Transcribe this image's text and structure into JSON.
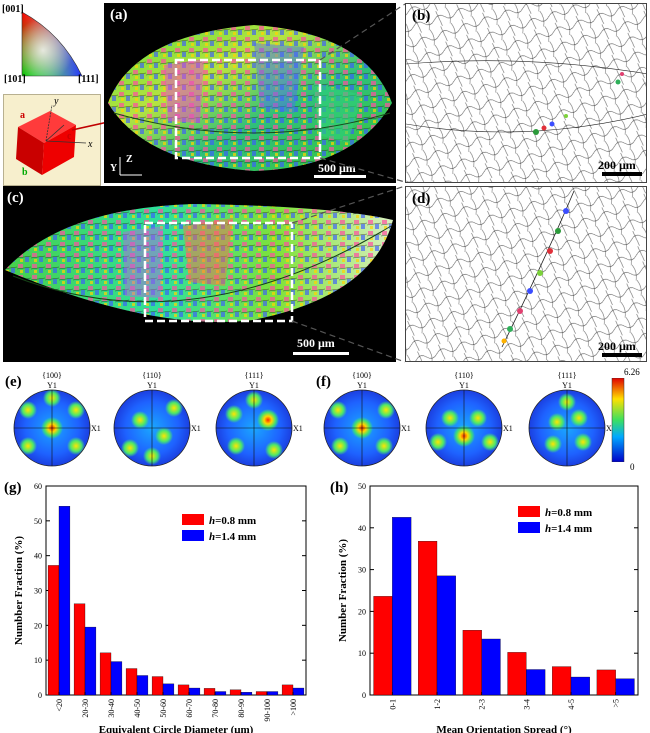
{
  "ipf_key": {
    "corner_001": "[001]",
    "corner_101": "[101]",
    "corner_111": "[111]"
  },
  "crystal": {
    "a": "a",
    "b": "b",
    "c": "c",
    "x": "x",
    "y": "y"
  },
  "map_axes": {
    "y": "Y",
    "z": "Z"
  },
  "panels": {
    "a": {
      "label": "(a)",
      "scale": "500 μm"
    },
    "b": {
      "label": "(b)",
      "scale": "200 μm"
    },
    "c": {
      "label": "(c)",
      "scale": "500 μm"
    },
    "d": {
      "label": "(d)",
      "scale": "200 μm"
    },
    "e": {
      "label": "(e)"
    },
    "f": {
      "label": "(f)"
    },
    "g": {
      "label": "(g)"
    },
    "h": {
      "label": "(h)"
    }
  },
  "pole_figures": {
    "planes": [
      "{100}",
      "{110}",
      "{111}"
    ],
    "axis_y": "Y1",
    "axis_x": "X1",
    "colorbar_max": "6.26",
    "colorbar_min": "0"
  },
  "colors": {
    "h08": "#ff0000",
    "h14": "#0000ff"
  },
  "chart_data": [
    {
      "type": "bar",
      "title": "",
      "xlabel": "Equivalent Circle Diameter (μm)",
      "ylabel": "Numbber Fraction (%)",
      "ylim": [
        0,
        60
      ],
      "yticks": [
        0,
        10,
        20,
        30,
        40,
        50,
        60
      ],
      "categories": [
        "<20",
        "20-30",
        "30-40",
        "40-50",
        "50-60",
        "60-70",
        "70-80",
        "80-90",
        "90-100",
        ">100"
      ],
      "legend_position": "top-right",
      "series": [
        {
          "name": "h=0.8 mm",
          "legend_italic": "h",
          "legend_rest": "=0.8 mm",
          "color": "#ff0000",
          "values": [
            37.2,
            26.2,
            12.1,
            7.6,
            5.3,
            2.9,
            1.9,
            1.5,
            1.0,
            2.9
          ]
        },
        {
          "name": "h=1.4 mm",
          "legend_italic": "h",
          "legend_rest": "=1.4 mm",
          "color": "#0000ff",
          "values": [
            54.2,
            19.5,
            9.6,
            5.6,
            3.2,
            2.0,
            1.0,
            0.8,
            1.0,
            2.0
          ]
        }
      ]
    },
    {
      "type": "bar",
      "title": "",
      "xlabel": "Mean Orientation Spread (°)",
      "ylabel": "Number Fraction (%)",
      "ylim": [
        0,
        50
      ],
      "yticks": [
        0,
        10,
        20,
        30,
        40,
        50
      ],
      "categories": [
        "0-1",
        "1-2",
        "2-3",
        "3-4",
        "4-5",
        ">5"
      ],
      "legend_position": "top-right",
      "series": [
        {
          "name": "h=0.8 mm",
          "legend_italic": "h",
          "legend_rest": "=0.8 mm",
          "color": "#ff0000",
          "values": [
            23.6,
            36.8,
            15.5,
            10.2,
            6.8,
            6.0
          ]
        },
        {
          "name": "h=1.4 mm",
          "legend_italic": "h",
          "legend_rest": "=1.4 mm",
          "color": "#0000ff",
          "values": [
            42.5,
            28.5,
            13.4,
            6.1,
            4.3,
            3.9
          ]
        }
      ]
    }
  ]
}
